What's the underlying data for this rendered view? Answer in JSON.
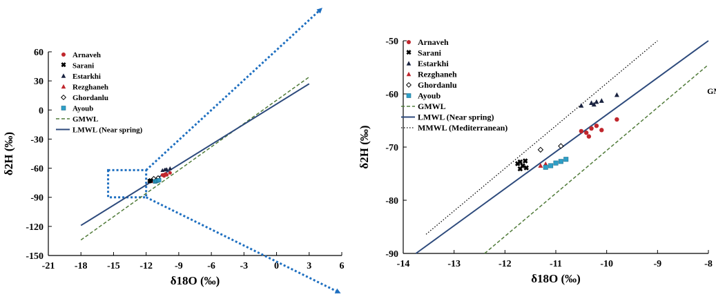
{
  "chart_data": [
    {
      "type": "scatter",
      "xlabel": "δ18O (‰)",
      "ylabel": "δ2H (‰)",
      "xlim": [
        -21,
        6
      ],
      "ylim": [
        -150,
        60
      ],
      "xticks": [
        "-21",
        "-18",
        "-15",
        "-12",
        "-9",
        "-6",
        "-3",
        "0",
        "3",
        "6"
      ],
      "yticks": [
        "60",
        "30",
        "0",
        "-30",
        "-60",
        "-90",
        "-120",
        "-150"
      ],
      "legend": [
        "Arnaveh",
        "Sarani",
        "Estarkhi",
        "Rezghaneh",
        "Ghordanlu",
        "Ayoub",
        "GMWL",
        "LMWL (Near spring)"
      ],
      "legend_position": "top-left",
      "zoom_box": {
        "x": [
          -15.5,
          -12
        ],
        "y": [
          -90,
          -62
        ]
      },
      "lines": [
        {
          "name": "GMWL",
          "style": "dashed",
          "x": [
            -18,
            3
          ],
          "y": [
            -134,
            34
          ]
        },
        {
          "name": "LMWL (Near spring)",
          "style": "solid",
          "x": [
            -18,
            3
          ],
          "y": [
            -119,
            27
          ]
        }
      ],
      "series": [
        {
          "name": "Arnaveh",
          "points": [
            [
              -10.4,
              -67.3
            ],
            [
              -10.35,
              -68.0
            ],
            [
              -10.3,
              -66.5
            ],
            [
              -10.2,
              -66.0
            ],
            [
              -10.1,
              -66.8
            ],
            [
              -10.5,
              -67.0
            ],
            [
              -9.8,
              -64.8
            ]
          ]
        },
        {
          "name": "Sarani",
          "points": [
            [
              -11.7,
              -73.5
            ],
            [
              -11.65,
              -74.0
            ],
            [
              -11.6,
              -72.8
            ],
            [
              -11.55,
              -73.7
            ]
          ]
        },
        {
          "name": "Estarkhi",
          "points": [
            [
              -10.5,
              -62.2
            ],
            [
              -10.3,
              -61.7
            ],
            [
              -10.2,
              -61.5
            ],
            [
              -10.1,
              -61.3
            ],
            [
              -9.8,
              -60.2
            ]
          ]
        },
        {
          "name": "Rezghaneh",
          "points": [
            [
              -11.2,
              -73.2
            ],
            [
              -11.3,
              -73.5
            ]
          ]
        },
        {
          "name": "Ghordanlu",
          "points": [
            [
              -11.3,
              -70.5
            ],
            [
              -10.9,
              -69.8
            ]
          ]
        },
        {
          "name": "Ayoub",
          "points": [
            [
              -11.2,
              -73.8
            ],
            [
              -11.1,
              -73.5
            ],
            [
              -11.0,
              -73.0
            ],
            [
              -10.9,
              -72.7
            ],
            [
              -10.8,
              -72.3
            ]
          ]
        }
      ]
    },
    {
      "type": "scatter",
      "xlabel": "δ18O (‰)",
      "ylabel": "δ2H (‰)",
      "xlim": [
        -14,
        -8
      ],
      "ylim": [
        -90,
        -50
      ],
      "xticks": [
        "-14",
        "-13",
        "-12",
        "-11",
        "-10",
        "-9",
        "-8"
      ],
      "yticks": [
        "-50",
        "-60",
        "-70",
        "-80",
        "-90"
      ],
      "legend": [
        "Arnaveh",
        "Sarani",
        "Estarkhi",
        "Rezghaneh",
        "Ghordanlu",
        "Ayoub",
        "GMWL",
        "LMWL (Near spring)",
        "MMWL (Mediterranean)"
      ],
      "legend_position": "top-left",
      "annotations": [
        {
          "text": "GMWL",
          "x": -7.75,
          "y": -60
        }
      ],
      "lines": [
        {
          "name": "GMWL",
          "style": "dashed",
          "x": [
            -12.4,
            -8
          ],
          "y": [
            -90,
            -54.5
          ]
        },
        {
          "name": "LMWL (Near spring)",
          "style": "solid",
          "x": [
            -13.75,
            -8
          ],
          "y": [
            -90,
            -50
          ]
        },
        {
          "name": "MMWL (Mediterranean)",
          "style": "dotted",
          "x": [
            -13.55,
            -9
          ],
          "y": [
            -86.4,
            -50
          ]
        }
      ],
      "series": [
        {
          "name": "Arnaveh",
          "points": [
            [
              -10.4,
              -67.3
            ],
            [
              -10.35,
              -68.0
            ],
            [
              -10.3,
              -66.5
            ],
            [
              -10.2,
              -66.0
            ],
            [
              -10.1,
              -66.8
            ],
            [
              -10.5,
              -67.0
            ],
            [
              -9.8,
              -64.8
            ]
          ]
        },
        {
          "name": "Sarani",
          "points": [
            [
              -11.75,
              -73.2
            ],
            [
              -11.7,
              -74.2
            ],
            [
              -11.65,
              -73.6
            ],
            [
              -11.6,
              -72.7
            ],
            [
              -11.58,
              -74.0
            ],
            [
              -11.7,
              -72.9
            ]
          ]
        },
        {
          "name": "Estarkhi",
          "points": [
            [
              -10.5,
              -62.2
            ],
            [
              -10.3,
              -61.7
            ],
            [
              -10.25,
              -62.0
            ],
            [
              -10.2,
              -61.5
            ],
            [
              -10.1,
              -61.3
            ],
            [
              -9.8,
              -60.2
            ]
          ]
        },
        {
          "name": "Rezghaneh",
          "points": [
            [
              -11.2,
              -73.2
            ],
            [
              -11.3,
              -73.5
            ]
          ]
        },
        {
          "name": "Ghordanlu",
          "points": [
            [
              -11.3,
              -70.5
            ],
            [
              -10.9,
              -69.8
            ]
          ]
        },
        {
          "name": "Ayoub",
          "points": [
            [
              -11.2,
              -73.8
            ],
            [
              -11.1,
              -73.5
            ],
            [
              -11.0,
              -73.0
            ],
            [
              -10.9,
              -72.7
            ],
            [
              -10.8,
              -72.3
            ]
          ]
        }
      ]
    }
  ],
  "colors": {
    "Arnaveh": "#c0272d",
    "Sarani": "#e6d400",
    "Estarkhi": "#1a2340",
    "Rezghaneh": "#c0272d",
    "Ghordanlu": "#000000",
    "Ayoub": "#2e9fc7",
    "GMWL": "#4f7a38",
    "LMWL": "#2d4a7c",
    "MMWL": "#000000",
    "zoom": "#1e6fc0"
  }
}
